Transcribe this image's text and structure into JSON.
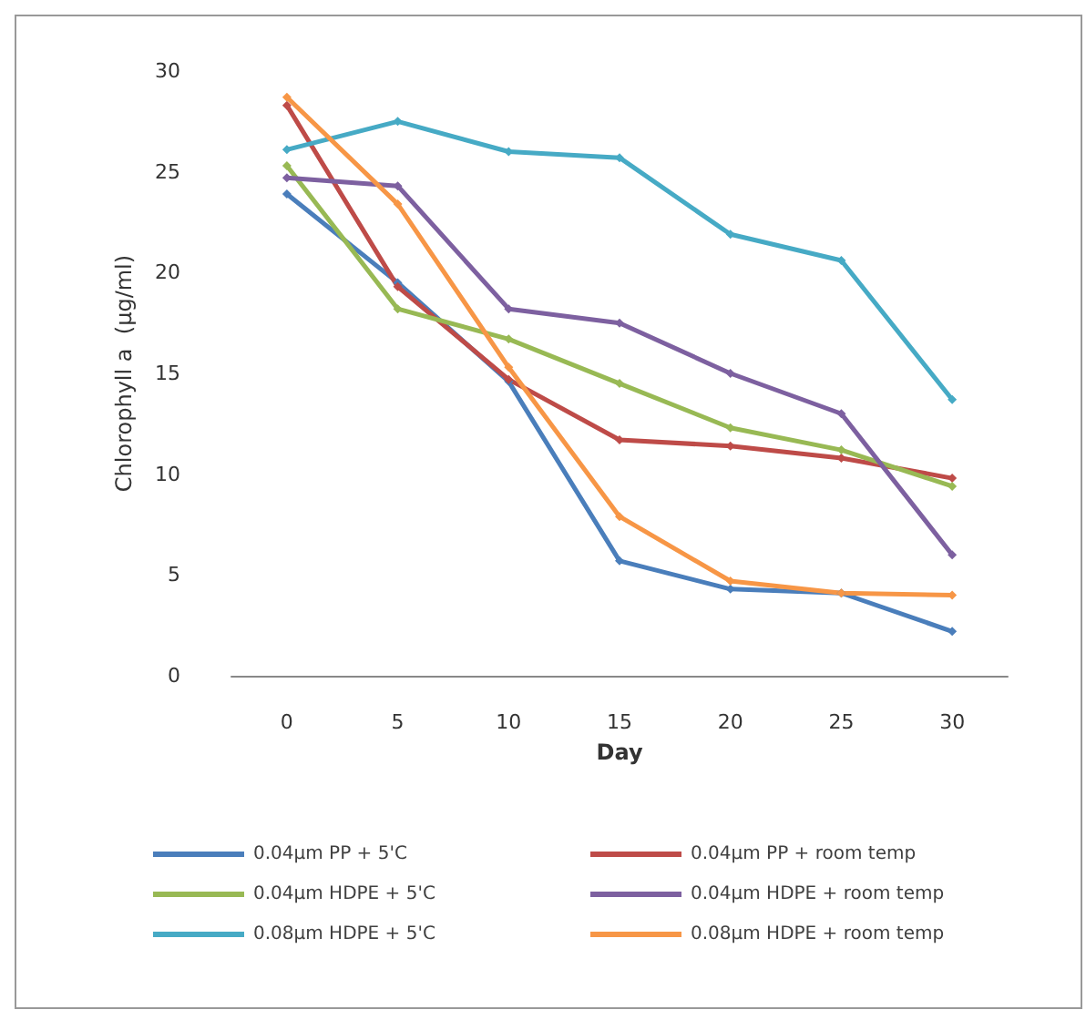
{
  "chart_data": {
    "type": "line",
    "xlabel": "Day",
    "ylabel": "Chlorophyll a  (µg/ml)",
    "categories": [
      "0",
      "5",
      "10",
      "15",
      "20",
      "25",
      "30"
    ],
    "ylim": [
      0,
      30
    ],
    "yticks": [
      0,
      5,
      10,
      15,
      20,
      25,
      30
    ],
    "grid": false,
    "legend": "bottom",
    "marker": "diamond",
    "line_style": "solid",
    "series": [
      {
        "name": "0.04µm PP + 5'C",
        "color": "#4a7ebb",
        "values": [
          23.9,
          19.5,
          14.6,
          5.7,
          4.3,
          4.1,
          2.2
        ]
      },
      {
        "name": "0.04µm PP + room temp",
        "color": "#be4b48",
        "values": [
          28.3,
          19.3,
          14.7,
          11.7,
          11.4,
          10.8,
          9.8
        ]
      },
      {
        "name": "0.04µm HDPE + 5'C",
        "color": "#98b954",
        "values": [
          25.3,
          18.2,
          16.7,
          14.5,
          12.3,
          11.2,
          9.4
        ]
      },
      {
        "name": "0.04µm HDPE + room temp",
        "color": "#7d60a0",
        "values": [
          24.7,
          24.3,
          18.2,
          17.5,
          15.0,
          13.0,
          6.0
        ]
      },
      {
        "name": "0.08µm HDPE + 5'C",
        "color": "#46aac5",
        "values": [
          26.1,
          27.5,
          26.0,
          25.7,
          21.9,
          20.6,
          13.7
        ]
      },
      {
        "name": "0.08µm HDPE + room temp",
        "color": "#f79646",
        "values": [
          28.7,
          23.4,
          15.3,
          7.9,
          4.7,
          4.1,
          4.0
        ]
      }
    ]
  }
}
